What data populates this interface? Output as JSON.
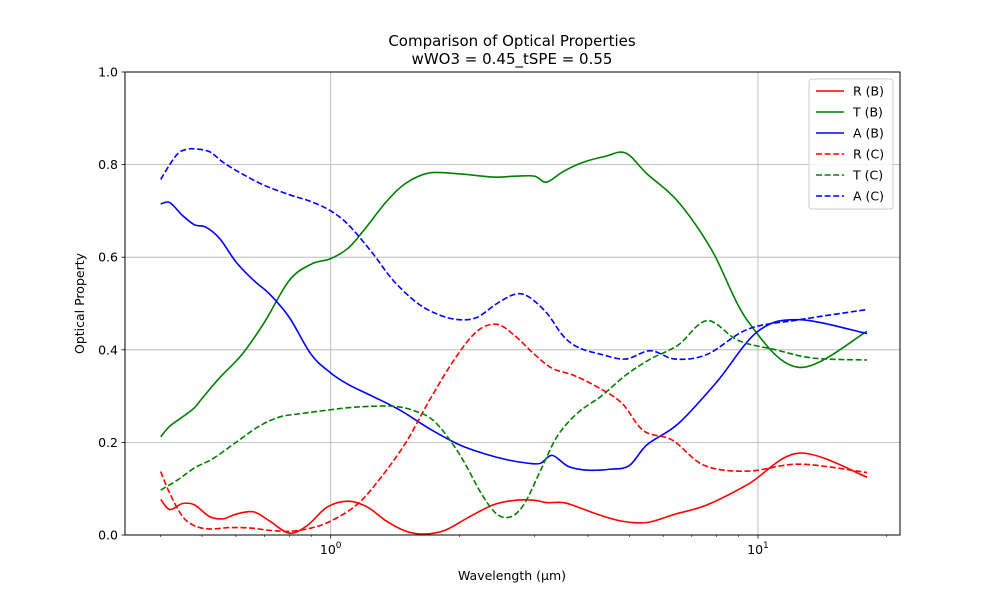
{
  "chart_data": {
    "type": "line",
    "title_line1": "Comparison of Optical Properties",
    "title_line2": "wWO3 = 0.45_tSPE = 0.55",
    "xlabel": "Wavelength (µm)",
    "ylabel": "Optical Property",
    "xscale": "log",
    "xlim": [
      0.33,
      21.5
    ],
    "ylim": [
      0.0,
      1.0
    ],
    "grid": true,
    "legend_position": "upper right",
    "x_ticks": [
      {
        "value": 1,
        "base": "10",
        "exp": "0"
      },
      {
        "value": 10,
        "base": "10",
        "exp": "1"
      }
    ],
    "y_ticks": [
      {
        "value": 0.0,
        "label": "0.0"
      },
      {
        "value": 0.2,
        "label": "0.2"
      },
      {
        "value": 0.4,
        "label": "0.4"
      },
      {
        "value": 0.6,
        "label": "0.6"
      },
      {
        "value": 0.8,
        "label": "0.8"
      },
      {
        "value": 1.0,
        "label": "1.0"
      }
    ],
    "series": [
      {
        "name": "R (B)",
        "color": "#ff0000",
        "dash": "solid",
        "x": [
          0.4,
          0.42,
          0.45,
          0.48,
          0.52,
          0.56,
          0.6,
          0.66,
          0.72,
          0.8,
          0.88,
          0.98,
          1.1,
          1.22,
          1.35,
          1.5,
          1.65,
          1.85,
          2.1,
          2.4,
          2.7,
          3.0,
          3.2,
          3.5,
          3.8,
          4.2,
          4.8,
          5.5,
          6.4,
          7.6,
          9.5,
          12.5,
          18.0
        ],
        "y": [
          0.077,
          0.055,
          0.068,
          0.065,
          0.04,
          0.035,
          0.045,
          0.05,
          0.03,
          0.004,
          0.02,
          0.06,
          0.073,
          0.06,
          0.03,
          0.008,
          0.002,
          0.01,
          0.038,
          0.065,
          0.075,
          0.075,
          0.07,
          0.07,
          0.06,
          0.045,
          0.03,
          0.027,
          0.045,
          0.065,
          0.11,
          0.177,
          0.125
        ]
      },
      {
        "name": "T (B)",
        "color": "#008000",
        "dash": "solid",
        "x": [
          0.4,
          0.42,
          0.45,
          0.48,
          0.5,
          0.55,
          0.62,
          0.7,
          0.8,
          0.9,
          1.0,
          1.1,
          1.2,
          1.35,
          1.5,
          1.7,
          2.0,
          2.4,
          2.7,
          3.0,
          3.2,
          3.5,
          3.9,
          4.4,
          4.9,
          5.5,
          6.5,
          7.8,
          9.5,
          12.5,
          18.0
        ],
        "y": [
          0.212,
          0.235,
          0.255,
          0.275,
          0.295,
          0.34,
          0.39,
          0.46,
          0.55,
          0.585,
          0.597,
          0.62,
          0.66,
          0.72,
          0.76,
          0.782,
          0.78,
          0.773,
          0.775,
          0.775,
          0.762,
          0.785,
          0.805,
          0.818,
          0.825,
          0.78,
          0.72,
          0.615,
          0.46,
          0.362,
          0.44
        ]
      },
      {
        "name": "A (B)",
        "color": "#0000ff",
        "dash": "solid",
        "x": [
          0.4,
          0.42,
          0.45,
          0.48,
          0.51,
          0.55,
          0.6,
          0.66,
          0.72,
          0.8,
          0.9,
          1.0,
          1.1,
          1.25,
          1.45,
          1.7,
          2.0,
          2.3,
          2.6,
          2.9,
          3.1,
          3.3,
          3.6,
          4.0,
          4.5,
          5.0,
          5.5,
          6.5,
          8.0,
          10.0,
          12.5,
          18.0
        ],
        "y": [
          0.715,
          0.718,
          0.69,
          0.67,
          0.665,
          0.64,
          0.59,
          0.55,
          0.52,
          0.47,
          0.39,
          0.35,
          0.325,
          0.3,
          0.27,
          0.23,
          0.195,
          0.175,
          0.162,
          0.155,
          0.155,
          0.172,
          0.148,
          0.14,
          0.142,
          0.15,
          0.195,
          0.24,
          0.33,
          0.44,
          0.465,
          0.435
        ]
      },
      {
        "name": "R (C)",
        "color": "#ff0000",
        "dash": "dashed",
        "x": [
          0.4,
          0.42,
          0.45,
          0.48,
          0.52,
          0.58,
          0.65,
          0.72,
          0.8,
          0.9,
          1.0,
          1.15,
          1.3,
          1.5,
          1.7,
          1.95,
          2.2,
          2.45,
          2.7,
          3.0,
          3.3,
          3.7,
          4.2,
          4.8,
          5.4,
          6.3,
          7.5,
          9.5,
          12.5,
          18.0
        ],
        "y": [
          0.137,
          0.09,
          0.04,
          0.02,
          0.013,
          0.016,
          0.015,
          0.01,
          0.008,
          0.015,
          0.03,
          0.065,
          0.12,
          0.2,
          0.29,
          0.38,
          0.44,
          0.455,
          0.43,
          0.39,
          0.36,
          0.345,
          0.32,
          0.285,
          0.225,
          0.205,
          0.15,
          0.138,
          0.153,
          0.135
        ]
      },
      {
        "name": "T (C)",
        "color": "#008000",
        "dash": "dashed",
        "x": [
          0.4,
          0.44,
          0.48,
          0.53,
          0.6,
          0.68,
          0.76,
          0.85,
          0.95,
          1.1,
          1.25,
          1.4,
          1.55,
          1.75,
          2.0,
          2.25,
          2.45,
          2.65,
          2.85,
          3.1,
          3.4,
          3.8,
          4.3,
          4.9,
          5.6,
          6.5,
          7.6,
          9.0,
          11.0,
          13.5,
          18.0
        ],
        "y": [
          0.097,
          0.12,
          0.145,
          0.165,
          0.2,
          0.235,
          0.255,
          0.262,
          0.268,
          0.275,
          0.278,
          0.278,
          0.27,
          0.245,
          0.175,
          0.09,
          0.045,
          0.04,
          0.07,
          0.14,
          0.215,
          0.265,
          0.3,
          0.345,
          0.38,
          0.41,
          0.463,
          0.42,
          0.4,
          0.382,
          0.378
        ]
      },
      {
        "name": "A (C)",
        "color": "#0000ff",
        "dash": "dashed",
        "x": [
          0.4,
          0.42,
          0.44,
          0.46,
          0.48,
          0.52,
          0.56,
          0.62,
          0.7,
          0.8,
          0.9,
          1.0,
          1.1,
          1.25,
          1.4,
          1.6,
          1.8,
          2.0,
          2.2,
          2.45,
          2.7,
          2.9,
          3.2,
          3.5,
          3.8,
          4.3,
          4.9,
          5.6,
          6.4,
          7.6,
          9.5,
          12.5,
          18.0
        ],
        "y": [
          0.768,
          0.8,
          0.825,
          0.833,
          0.834,
          0.828,
          0.805,
          0.78,
          0.755,
          0.735,
          0.72,
          0.7,
          0.67,
          0.61,
          0.55,
          0.5,
          0.475,
          0.465,
          0.47,
          0.5,
          0.52,
          0.515,
          0.48,
          0.43,
          0.405,
          0.39,
          0.38,
          0.398,
          0.38,
          0.39,
          0.445,
          0.465,
          0.487
        ]
      }
    ]
  }
}
